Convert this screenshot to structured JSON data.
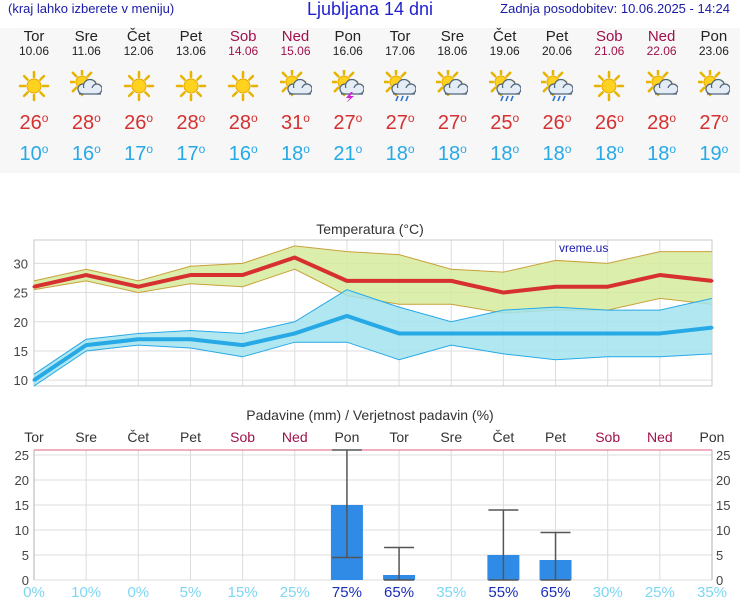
{
  "header": {
    "menu_note": "(kraj lahko izberete v meniju)",
    "title": "Ljubljana 14 dni",
    "updated": "Zadnja posodobitev: 10.06.2025 - 14:24"
  },
  "days": [
    {
      "name": "Tor",
      "date": "10.06",
      "weekend": false,
      "icon": "sun-icon",
      "tmax": "26",
      "tmin": "10"
    },
    {
      "name": "Sre",
      "date": "11.06",
      "weekend": false,
      "icon": "sun-cloud-icon",
      "tmax": "28",
      "tmin": "16"
    },
    {
      "name": "Čet",
      "date": "12.06",
      "weekend": false,
      "icon": "sun-icon",
      "tmax": "26",
      "tmin": "17"
    },
    {
      "name": "Pet",
      "date": "13.06",
      "weekend": false,
      "icon": "sun-icon",
      "tmax": "28",
      "tmin": "17"
    },
    {
      "name": "Sob",
      "date": "14.06",
      "weekend": true,
      "icon": "sun-icon",
      "tmax": "28",
      "tmin": "16"
    },
    {
      "name": "Ned",
      "date": "15.06",
      "weekend": true,
      "icon": "sun-cloud-icon",
      "tmax": "31",
      "tmin": "18"
    },
    {
      "name": "Pon",
      "date": "16.06",
      "weekend": false,
      "icon": "sun-storm-icon",
      "tmax": "27",
      "tmin": "21"
    },
    {
      "name": "Tor",
      "date": "17.06",
      "weekend": false,
      "icon": "sun-rain-icon",
      "tmax": "27",
      "tmin": "18"
    },
    {
      "name": "Sre",
      "date": "18.06",
      "weekend": false,
      "icon": "sun-cloud-icon",
      "tmax": "27",
      "tmin": "18"
    },
    {
      "name": "Čet",
      "date": "19.06",
      "weekend": false,
      "icon": "sun-rain-icon",
      "tmax": "25",
      "tmin": "18"
    },
    {
      "name": "Pet",
      "date": "20.06",
      "weekend": false,
      "icon": "sun-rain-icon",
      "tmax": "26",
      "tmin": "18"
    },
    {
      "name": "Sob",
      "date": "21.06",
      "weekend": true,
      "icon": "sun-icon",
      "tmax": "26",
      "tmin": "18"
    },
    {
      "name": "Ned",
      "date": "22.06",
      "weekend": true,
      "icon": "sun-cloud-icon",
      "tmax": "28",
      "tmin": "18"
    },
    {
      "name": "Pon",
      "date": "23.06",
      "weekend": false,
      "icon": "sun-cloud-icon",
      "tmax": "27",
      "tmin": "19"
    }
  ],
  "degree_symbol": "o",
  "colors": {
    "max": "#d63030",
    "min": "#27a9e6",
    "weekend": "#a0104a",
    "precip_bar": "#2f8be6",
    "max_band": "#d6eb9c",
    "min_band": "#a3e3ef"
  },
  "chart_data": [
    {
      "type": "line",
      "title": "Temperatura (°C)",
      "watermark": "vreme.us",
      "x": [
        "Tor",
        "Sre",
        "Čet",
        "Pet",
        "Sob",
        "Ned",
        "Pon",
        "Tor",
        "Sre",
        "Čet",
        "Pet",
        "Sob",
        "Ned",
        "Pon"
      ],
      "ylim": [
        9,
        34
      ],
      "yticks": [
        10,
        15,
        20,
        25,
        30
      ],
      "grid": true,
      "series": [
        {
          "values": [
            26,
            28,
            26,
            28,
            28,
            31,
            27,
            27,
            27,
            25,
            26,
            26,
            28,
            27
          ],
          "range_low": [
            25.5,
            27,
            25,
            26.5,
            26,
            29,
            24.5,
            23,
            23,
            21.5,
            22,
            22,
            24,
            23
          ],
          "range_high": [
            27,
            29,
            27,
            29.5,
            30,
            33,
            32,
            31.5,
            29,
            28.5,
            30.5,
            30,
            32,
            32
          ],
          "color": "#d63030"
        },
        {
          "values": [
            10,
            16,
            17,
            17,
            16,
            18,
            21,
            18,
            18,
            18,
            18,
            18,
            18,
            19
          ],
          "range_low": [
            9,
            15,
            16,
            15.5,
            14,
            16.5,
            16.5,
            13.5,
            16,
            14.5,
            13.5,
            14,
            14,
            14.5
          ],
          "range_high": [
            11,
            17,
            18,
            18.5,
            18,
            20,
            25.5,
            22.5,
            20,
            22,
            22.5,
            22,
            22,
            24
          ],
          "color": "#27a9e6"
        }
      ]
    },
    {
      "type": "bar",
      "title": "Padavine (mm) / Verjetnost padavin (%)",
      "categories": [
        "Tor",
        "Sre",
        "Čet",
        "Pet",
        "Sob",
        "Ned",
        "Pon",
        "Tor",
        "Sre",
        "Čet",
        "Pet",
        "Sob",
        "Ned",
        "Pon"
      ],
      "values": [
        0,
        0,
        0,
        0,
        0,
        0,
        15,
        1,
        0,
        5,
        4,
        0,
        0,
        0
      ],
      "error_low": [
        null,
        null,
        null,
        null,
        null,
        null,
        4.5,
        0,
        null,
        0,
        0,
        null,
        null,
        null
      ],
      "error_high": [
        null,
        null,
        null,
        null,
        null,
        null,
        26,
        6.5,
        null,
        14,
        9.5,
        null,
        null,
        null
      ],
      "probability": [
        "0%",
        "10%",
        "0%",
        "5%",
        "15%",
        "25%",
        "75%",
        "65%",
        "35%",
        "55%",
        "65%",
        "30%",
        "25%",
        "35%"
      ],
      "ylim": [
        0,
        26
      ],
      "yticks": [
        0,
        5,
        10,
        15,
        20,
        25
      ],
      "grid": true
    }
  ]
}
